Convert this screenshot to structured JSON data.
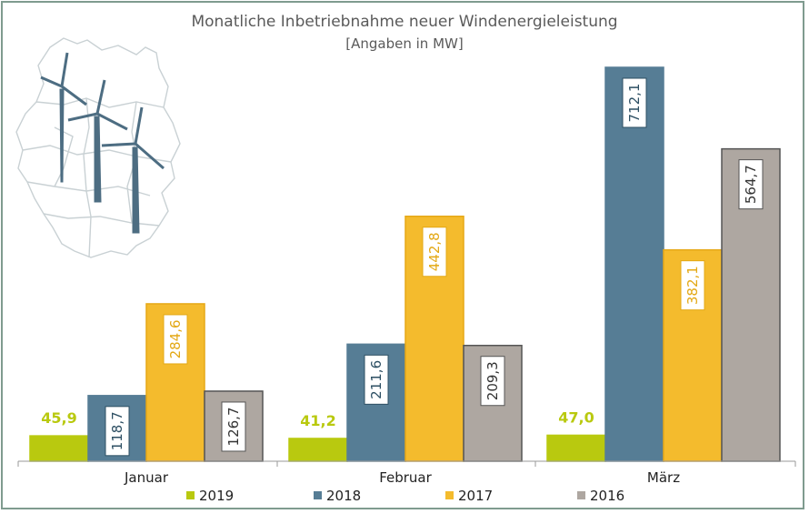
{
  "chart_data": {
    "type": "bar",
    "title": "Monatliche Inbetriebnahme neuer Windenergieleistung",
    "subtitle": "[Angaben in MW]",
    "categories": [
      "Januar",
      "Februar",
      "März"
    ],
    "series": [
      {
        "name": "2019",
        "values": [
          45.9,
          41.2,
          47.0
        ],
        "labels": [
          "45,9",
          "41,2",
          "47,0"
        ],
        "color": "#b9c90f"
      },
      {
        "name": "2018",
        "values": [
          118.7,
          211.6,
          712.1
        ],
        "labels": [
          "118,7",
          "211,6",
          "712,1"
        ],
        "color": "#567d95"
      },
      {
        "name": "2017",
        "values": [
          284.6,
          442.8,
          382.1
        ],
        "labels": [
          "284,6",
          "442,8",
          "382,1"
        ],
        "color": "#f4bb2d"
      },
      {
        "name": "2016",
        "values": [
          126.7,
          209.3,
          564.7
        ],
        "labels": [
          "126,7",
          "209,3",
          "564,7"
        ],
        "color": "#aea7a1"
      }
    ],
    "ylim": [
      0,
      800
    ],
    "xlabel": "",
    "ylabel": "",
    "grid": false,
    "legend": "bottom"
  },
  "colors": {
    "frame": "#7f9b8f",
    "turbine": "#4d6d82",
    "map": "#c9d1d4"
  },
  "icons": [
    "germany-map-icon",
    "wind-turbine-icon"
  ]
}
